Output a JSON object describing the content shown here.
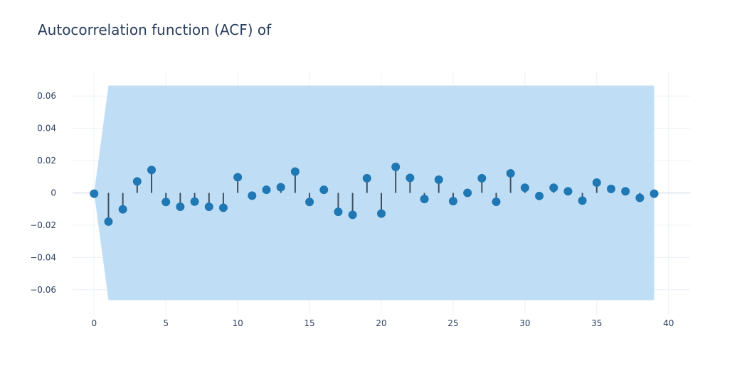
{
  "chart_data": {
    "type": "scatter",
    "title": "Autocorrelation function (ACF) of",
    "xlabel": "",
    "ylabel": "",
    "xlim": [
      -1.5,
      41.5
    ],
    "ylim": [
      -0.0755,
      0.0755
    ],
    "x_ticks": [
      0,
      5,
      10,
      15,
      20,
      25,
      30,
      35,
      40
    ],
    "y_ticks": [
      {
        "value": 0.06,
        "label": "0.06"
      },
      {
        "value": 0.04,
        "label": "0.04"
      },
      {
        "value": 0.02,
        "label": "0.02"
      },
      {
        "value": 0,
        "label": "0"
      },
      {
        "value": -0.02,
        "label": "−0.02"
      },
      {
        "value": -0.04,
        "label": "−0.04"
      },
      {
        "value": -0.06,
        "label": "−0.06"
      }
    ],
    "grid": true,
    "legend": "none",
    "confidence_band": {
      "x": [
        0,
        1,
        39
      ],
      "upper": [
        0,
        0.0665,
        0.0665
      ],
      "lower": [
        0,
        -0.0665,
        -0.0665
      ],
      "color": "#bcdcf6"
    },
    "series": [
      {
        "lags": [
          0,
          1,
          2,
          3,
          4,
          5,
          6,
          7,
          8,
          9,
          10,
          11,
          12,
          13,
          14,
          15,
          16,
          17,
          18,
          19,
          20,
          21,
          22,
          23,
          24,
          25,
          26,
          27,
          28,
          29,
          30,
          31,
          32,
          33,
          34,
          35,
          36,
          37,
          38,
          39
        ],
        "values": [
          -0.0005,
          -0.0178,
          -0.0102,
          0.0071,
          0.0142,
          -0.0056,
          -0.0086,
          -0.0054,
          -0.0086,
          -0.0092,
          0.0097,
          -0.0017,
          0.0019,
          0.0035,
          0.0132,
          -0.0056,
          0.0019,
          -0.0117,
          -0.0136,
          0.0091,
          -0.0128,
          0.0161,
          0.0093,
          -0.0038,
          0.0082,
          -0.0051,
          0.0,
          0.0091,
          -0.0055,
          0.0121,
          0.0032,
          -0.0019,
          0.0032,
          0.001,
          -0.0048,
          0.0064,
          0.0025,
          0.001,
          -0.0031,
          -0.0005
        ],
        "marker_color": "#1f77b4",
        "stem_color": "#3f4f5f"
      }
    ]
  }
}
